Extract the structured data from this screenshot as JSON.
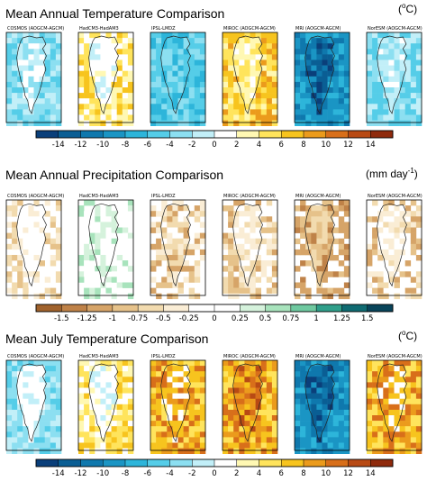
{
  "figure": {
    "sections": [
      {
        "id": "temp",
        "title": "Mean Annual Temperature Comparison",
        "unit_pre": "(",
        "unit_sup": "o",
        "unit_post": "C)",
        "colorbar": {
          "labels": [
            "-14",
            "-12",
            "-10",
            "-8",
            "-6",
            "-4",
            "-2",
            "0",
            "2",
            "4",
            "6",
            "8",
            "10",
            "12",
            "14"
          ],
          "colors": [
            "#0a3f7a",
            "#0a5e94",
            "#0f78ad",
            "#1a95c4",
            "#2db5da",
            "#55cde8",
            "#8cdff1",
            "#c2eff8",
            "#ffffff",
            "#fff8b3",
            "#ffe45c",
            "#f7c41e",
            "#eb9b1c",
            "#d86f1a",
            "#b84a14",
            "#8f2a0c"
          ]
        },
        "panels": [
          {
            "label": "COSMOS (AOGCM-AGCM)",
            "style": "cool_light"
          },
          {
            "label": "HadCM3-HadAM3",
            "style": "mixed_white_yellow"
          },
          {
            "label": "IPSL-LMDZ",
            "style": "cool_medium"
          },
          {
            "label": "MIROC (AOGCM-AGCM)",
            "style": "warm_yellow"
          },
          {
            "label": "MRI (AOGCM-AGCM)",
            "style": "cool_dark"
          },
          {
            "label": "NorESM (AOGCM-AGCM)",
            "style": "cool_light2"
          }
        ]
      },
      {
        "id": "precip",
        "title": "Mean Annual Precipitation Comparison",
        "unit_pre": "(mm day",
        "unit_sup": "-1",
        "unit_post": ")",
        "colorbar": {
          "labels": [
            "-1.5",
            "-1.25",
            "-1",
            "-0.75",
            "-0.5",
            "-0.25",
            "0",
            "0.25",
            "0.5",
            "0.75",
            "1",
            "1.25",
            "1.5"
          ],
          "colors": [
            "#a0622c",
            "#bf8248",
            "#d6a468",
            "#e6c28a",
            "#f2dbaf",
            "#faedd5",
            "#ffffff",
            "#ffffff",
            "#d5f2dc",
            "#a8e3bc",
            "#6fc9a0",
            "#2f9f8a",
            "#0f6b72",
            "#08445a"
          ]
        },
        "panels": [
          {
            "label": "COSMOS (AOGCM-AGCM)",
            "style": "precip_white"
          },
          {
            "label": "HadCM3-HadAM3",
            "style": "precip_green"
          },
          {
            "label": "IPSL-LMDZ",
            "style": "precip_tan"
          },
          {
            "label": "MIROC (AOGCM-AGCM)",
            "style": "precip_tan_light"
          },
          {
            "label": "MRI (AOGCM-AGCM)",
            "style": "precip_tan_strong"
          },
          {
            "label": "NorESM (AOGCM-AGCM)",
            "style": "precip_tan_light"
          }
        ]
      },
      {
        "id": "july",
        "title": "Mean July Temperature Comparison",
        "unit_pre": "(",
        "unit_sup": "o",
        "unit_post": "C)",
        "colorbar": {
          "labels": [
            "-14",
            "-12",
            "-10",
            "-8",
            "-6",
            "-4",
            "-2",
            "0",
            "2",
            "4",
            "6",
            "8",
            "10",
            "12",
            "14"
          ],
          "colors": [
            "#0a3f7a",
            "#0a5e94",
            "#0f78ad",
            "#1a95c4",
            "#2db5da",
            "#55cde8",
            "#8cdff1",
            "#c2eff8",
            "#ffffff",
            "#fff8b3",
            "#ffe45c",
            "#f7c41e",
            "#eb9b1c",
            "#d86f1a",
            "#b84a14",
            "#8f2a0c"
          ]
        },
        "panels": [
          {
            "label": "COSMOS (AOGCM-AGCM)",
            "style": "july_white_blue"
          },
          {
            "label": "HadCM3-HadAM3",
            "style": "mixed_white_yellow"
          },
          {
            "label": "IPSL-LMDZ",
            "style": "july_orange"
          },
          {
            "label": "MIROC (AOGCM-AGCM)",
            "style": "july_red"
          },
          {
            "label": "MRI (AOGCM-AGCM)",
            "style": "cool_dark"
          },
          {
            "label": "NorESM (AOGCM-AGCM)",
            "style": "july_orange"
          }
        ]
      }
    ]
  },
  "chart_data": [
    {
      "type": "heatmap",
      "title": "Mean Annual Temperature Comparison",
      "unit": "(oC)",
      "panels": [
        "COSMOS (AOGCM-AGCM)",
        "HadCM3-HadAM3",
        "IPSL-LMDZ",
        "MIROC (AOGCM-AGCM)",
        "MRI (AOGCM-AGCM)",
        "NorESM (AOGCM-AGCM)"
      ],
      "colorbar_ticks": [
        -14,
        -12,
        -10,
        -8,
        -6,
        -4,
        -2,
        0,
        2,
        4,
        6,
        8,
        10,
        12,
        14
      ],
      "range": [
        -15,
        15
      ]
    },
    {
      "type": "heatmap",
      "title": "Mean Annual Precipitation Comparison",
      "unit": "(mm day-1)",
      "panels": [
        "COSMOS (AOGCM-AGCM)",
        "HadCM3-HadAM3",
        "IPSL-LMDZ",
        "MIROC (AOGCM-AGCM)",
        "MRI (AOGCM-AGCM)",
        "NorESM (AOGCM-AGCM)"
      ],
      "colorbar_ticks": [
        -1.5,
        -1.25,
        -1,
        -0.75,
        -0.5,
        -0.25,
        0,
        0.25,
        0.5,
        0.75,
        1,
        1.25,
        1.5
      ],
      "range": [
        -1.75,
        1.75
      ]
    },
    {
      "type": "heatmap",
      "title": "Mean July Temperature Comparison",
      "unit": "(oC)",
      "panels": [
        "COSMOS (AOGCM-AGCM)",
        "HadCM3-HadAM3",
        "IPSL-LMDZ",
        "MIROC (AOGCM-AGCM)",
        "MRI (AOGCM-AGCM)",
        "NorESM (AOGCM-AGCM)"
      ],
      "colorbar_ticks": [
        -14,
        -12,
        -10,
        -8,
        -6,
        -4,
        -2,
        0,
        2,
        4,
        6,
        8,
        10,
        12,
        14
      ],
      "range": [
        -15,
        15
      ]
    }
  ]
}
